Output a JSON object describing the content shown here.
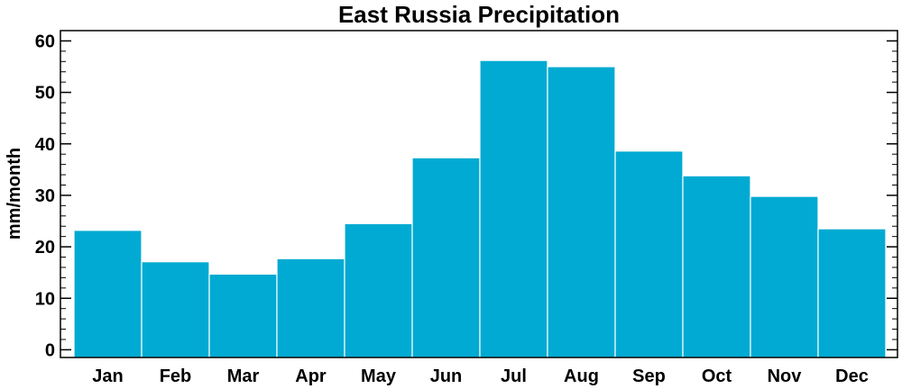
{
  "chart_data": {
    "type": "bar",
    "title": "East Russia Precipitation",
    "xlabel": "",
    "ylabel": "mm/month",
    "categories": [
      "Jan",
      "Feb",
      "Mar",
      "Apr",
      "May",
      "Jun",
      "Jul",
      "Aug",
      "Sep",
      "Oct",
      "Nov",
      "Dec"
    ],
    "values": [
      23.2,
      17.1,
      14.7,
      17.7,
      24.5,
      37.3,
      56.2,
      55.0,
      38.6,
      33.8,
      29.8,
      23.5
    ],
    "ylim": [
      -1.5,
      62
    ],
    "yticks": [
      0,
      10,
      20,
      30,
      40,
      50,
      60
    ],
    "bar_color": "#00AAD2",
    "bar_edge_color": "#ffffff",
    "grid": false,
    "legend": "none"
  }
}
